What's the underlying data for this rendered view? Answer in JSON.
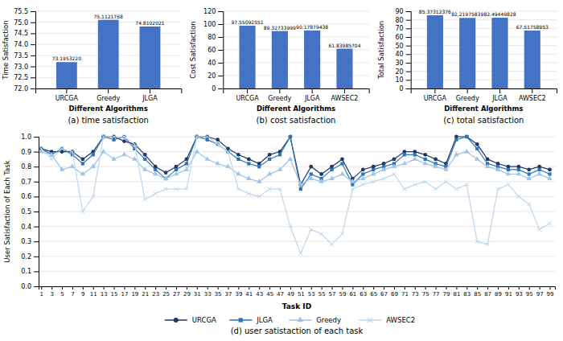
{
  "chart_data": [
    {
      "type": "bar",
      "title": "(a) time satisfaction",
      "categories": [
        "URCGA",
        "Greedy",
        "JLGA"
      ],
      "values": [
        73.195322,
        75.1121768,
        74.8102021
      ],
      "value_labels": [
        "73.1953220",
        "75.1121768",
        "74.8102021"
      ],
      "color": "#4472C4",
      "ylim": [
        72,
        75.5
      ],
      "yticks": [
        {
          "value": 72,
          "label": "72.0"
        },
        72.5,
        {
          "value": 73,
          "label": "73.0"
        },
        73.5,
        {
          "value": 74,
          "label": "74.0"
        },
        74.5,
        {
          "value": 75,
          "label": "75.0"
        },
        75.5
      ],
      "ylabel": "Time Satisfaction",
      "xlabel": "Different Algorithms",
      "grid": true,
      "data_labels": true
    },
    {
      "type": "bar",
      "title": "(b) cost satisfaction",
      "categories": [
        "URCGA",
        "Greedy",
        "JLGA",
        "AWSEC2"
      ],
      "values": [
        97.55092551,
        89.32733999,
        90.17879438,
        61.83985704
      ],
      "color": "#4472C4",
      "ylim": [
        0,
        120
      ],
      "yticks": [
        0,
        20,
        40,
        60,
        80,
        100,
        120
      ],
      "ylabel": "Cost Satisfaction",
      "xlabel": "Different Algorithms",
      "grid": true,
      "data_labels": true
    },
    {
      "type": "bar",
      "title": "(c) total satisfaction",
      "categories": [
        "URCGA",
        "Greedy",
        "JLGA",
        "AWSEC2"
      ],
      "values": [
        85.37312376,
        82.21975839,
        82.49449828,
        67.51758953
      ],
      "color": "#4472C4",
      "ylim": [
        0,
        90
      ],
      "yticks": [
        0,
        10,
        20,
        30,
        40,
        50,
        60,
        70,
        80,
        90
      ],
      "ylabel": "Total Satisfaction",
      "xlabel": "Different Algorithms",
      "grid": true,
      "data_labels": true
    },
    {
      "type": "line",
      "title": "(d) user satistaction of each task",
      "x": [
        1,
        3,
        5,
        7,
        9,
        11,
        13,
        15,
        17,
        19,
        21,
        23,
        25,
        27,
        29,
        31,
        33,
        35,
        37,
        39,
        41,
        43,
        45,
        47,
        49,
        51,
        53,
        55,
        57,
        59,
        61,
        63,
        65,
        67,
        69,
        71,
        73,
        75,
        77,
        79,
        81,
        83,
        85,
        87,
        89,
        91,
        93,
        95,
        97,
        99
      ],
      "series": [
        {
          "name": "URCGA",
          "color": "#1F3864",
          "marker": "circle",
          "values": [
            0.92,
            0.9,
            0.9,
            0.9,
            0.85,
            0.9,
            1.0,
            1.0,
            0.97,
            0.95,
            0.88,
            0.8,
            0.76,
            0.8,
            0.85,
            1.0,
            1.0,
            0.98,
            0.92,
            0.88,
            0.85,
            0.82,
            0.88,
            0.9,
            1.0,
            0.68,
            0.8,
            0.75,
            0.8,
            0.85,
            0.72,
            0.78,
            0.8,
            0.82,
            0.85,
            0.9,
            0.9,
            0.88,
            0.85,
            0.82,
            1.0,
            1.0,
            0.95,
            0.85,
            0.82,
            0.8,
            0.8,
            0.78,
            0.8,
            0.78
          ]
        },
        {
          "name": "JLGA",
          "color": "#2E75B6",
          "marker": "square",
          "values": [
            0.92,
            0.88,
            0.92,
            0.88,
            0.82,
            0.88,
            1.0,
            0.98,
            1.0,
            0.92,
            0.85,
            0.78,
            0.72,
            0.78,
            0.82,
            1.0,
            0.98,
            0.95,
            0.9,
            0.85,
            0.82,
            0.8,
            0.85,
            0.88,
            1.0,
            0.65,
            0.75,
            0.72,
            0.78,
            0.82,
            0.68,
            0.75,
            0.78,
            0.8,
            0.82,
            0.88,
            0.88,
            0.85,
            0.82,
            0.8,
            0.98,
            1.0,
            0.92,
            0.82,
            0.8,
            0.78,
            0.78,
            0.75,
            0.78,
            0.75
          ]
        },
        {
          "name": "Greedy",
          "color": "#9DC3E6",
          "marker": "triangle",
          "values": [
            0.9,
            0.88,
            0.78,
            0.8,
            0.75,
            0.8,
            0.9,
            0.85,
            0.88,
            0.85,
            0.78,
            0.75,
            0.72,
            0.75,
            0.78,
            0.9,
            0.85,
            0.82,
            0.8,
            0.75,
            0.72,
            0.7,
            0.75,
            0.78,
            0.85,
            0.68,
            0.72,
            0.7,
            0.72,
            0.75,
            0.7,
            0.72,
            0.75,
            0.78,
            0.8,
            0.82,
            0.85,
            0.82,
            0.8,
            0.78,
            0.88,
            0.9,
            0.85,
            0.8,
            0.78,
            0.75,
            0.75,
            0.72,
            0.75,
            0.72
          ]
        },
        {
          "name": "AWSEC2",
          "color": "#BDD7EE",
          "marker": "x",
          "values": [
            0.92,
            0.85,
            0.92,
            0.9,
            0.5,
            0.6,
            1.0,
            1.0,
            1.0,
            0.95,
            0.58,
            0.62,
            0.65,
            0.65,
            0.65,
            1.0,
            1.0,
            0.95,
            0.9,
            0.65,
            0.62,
            0.6,
            0.65,
            0.65,
            0.4,
            0.22,
            0.38,
            0.35,
            0.28,
            0.35,
            0.65,
            0.68,
            0.7,
            0.72,
            0.75,
            0.65,
            0.68,
            0.7,
            0.65,
            0.7,
            0.65,
            0.68,
            0.3,
            0.28,
            0.65,
            0.68,
            0.6,
            0.55,
            0.38,
            0.42
          ]
        }
      ],
      "xlim": [
        0.5,
        100
      ],
      "xticks": [
        1,
        3,
        5,
        7,
        9,
        11,
        13,
        15,
        17,
        19,
        21,
        23,
        25,
        27,
        29,
        31,
        33,
        35,
        37,
        39,
        41,
        43,
        45,
        47,
        49,
        51,
        53,
        55,
        57,
        59,
        61,
        63,
        65,
        67,
        69,
        71,
        73,
        75,
        77,
        79,
        81,
        83,
        85,
        87,
        89,
        91,
        93,
        95,
        97,
        99
      ],
      "ylim": [
        0,
        1.0
      ],
      "yticks": [
        {
          "value": 0,
          "label": "0.0"
        },
        0.1,
        0.2,
        0.3,
        0.4,
        0.5,
        0.6,
        0.7,
        0.8,
        0.9,
        {
          "value": 1.0,
          "label": "1.0"
        }
      ],
      "xlabel": "Task ID",
      "ylabel": "User Satisfaction of Each Task",
      "grid": true,
      "legend": "bottom"
    }
  ]
}
